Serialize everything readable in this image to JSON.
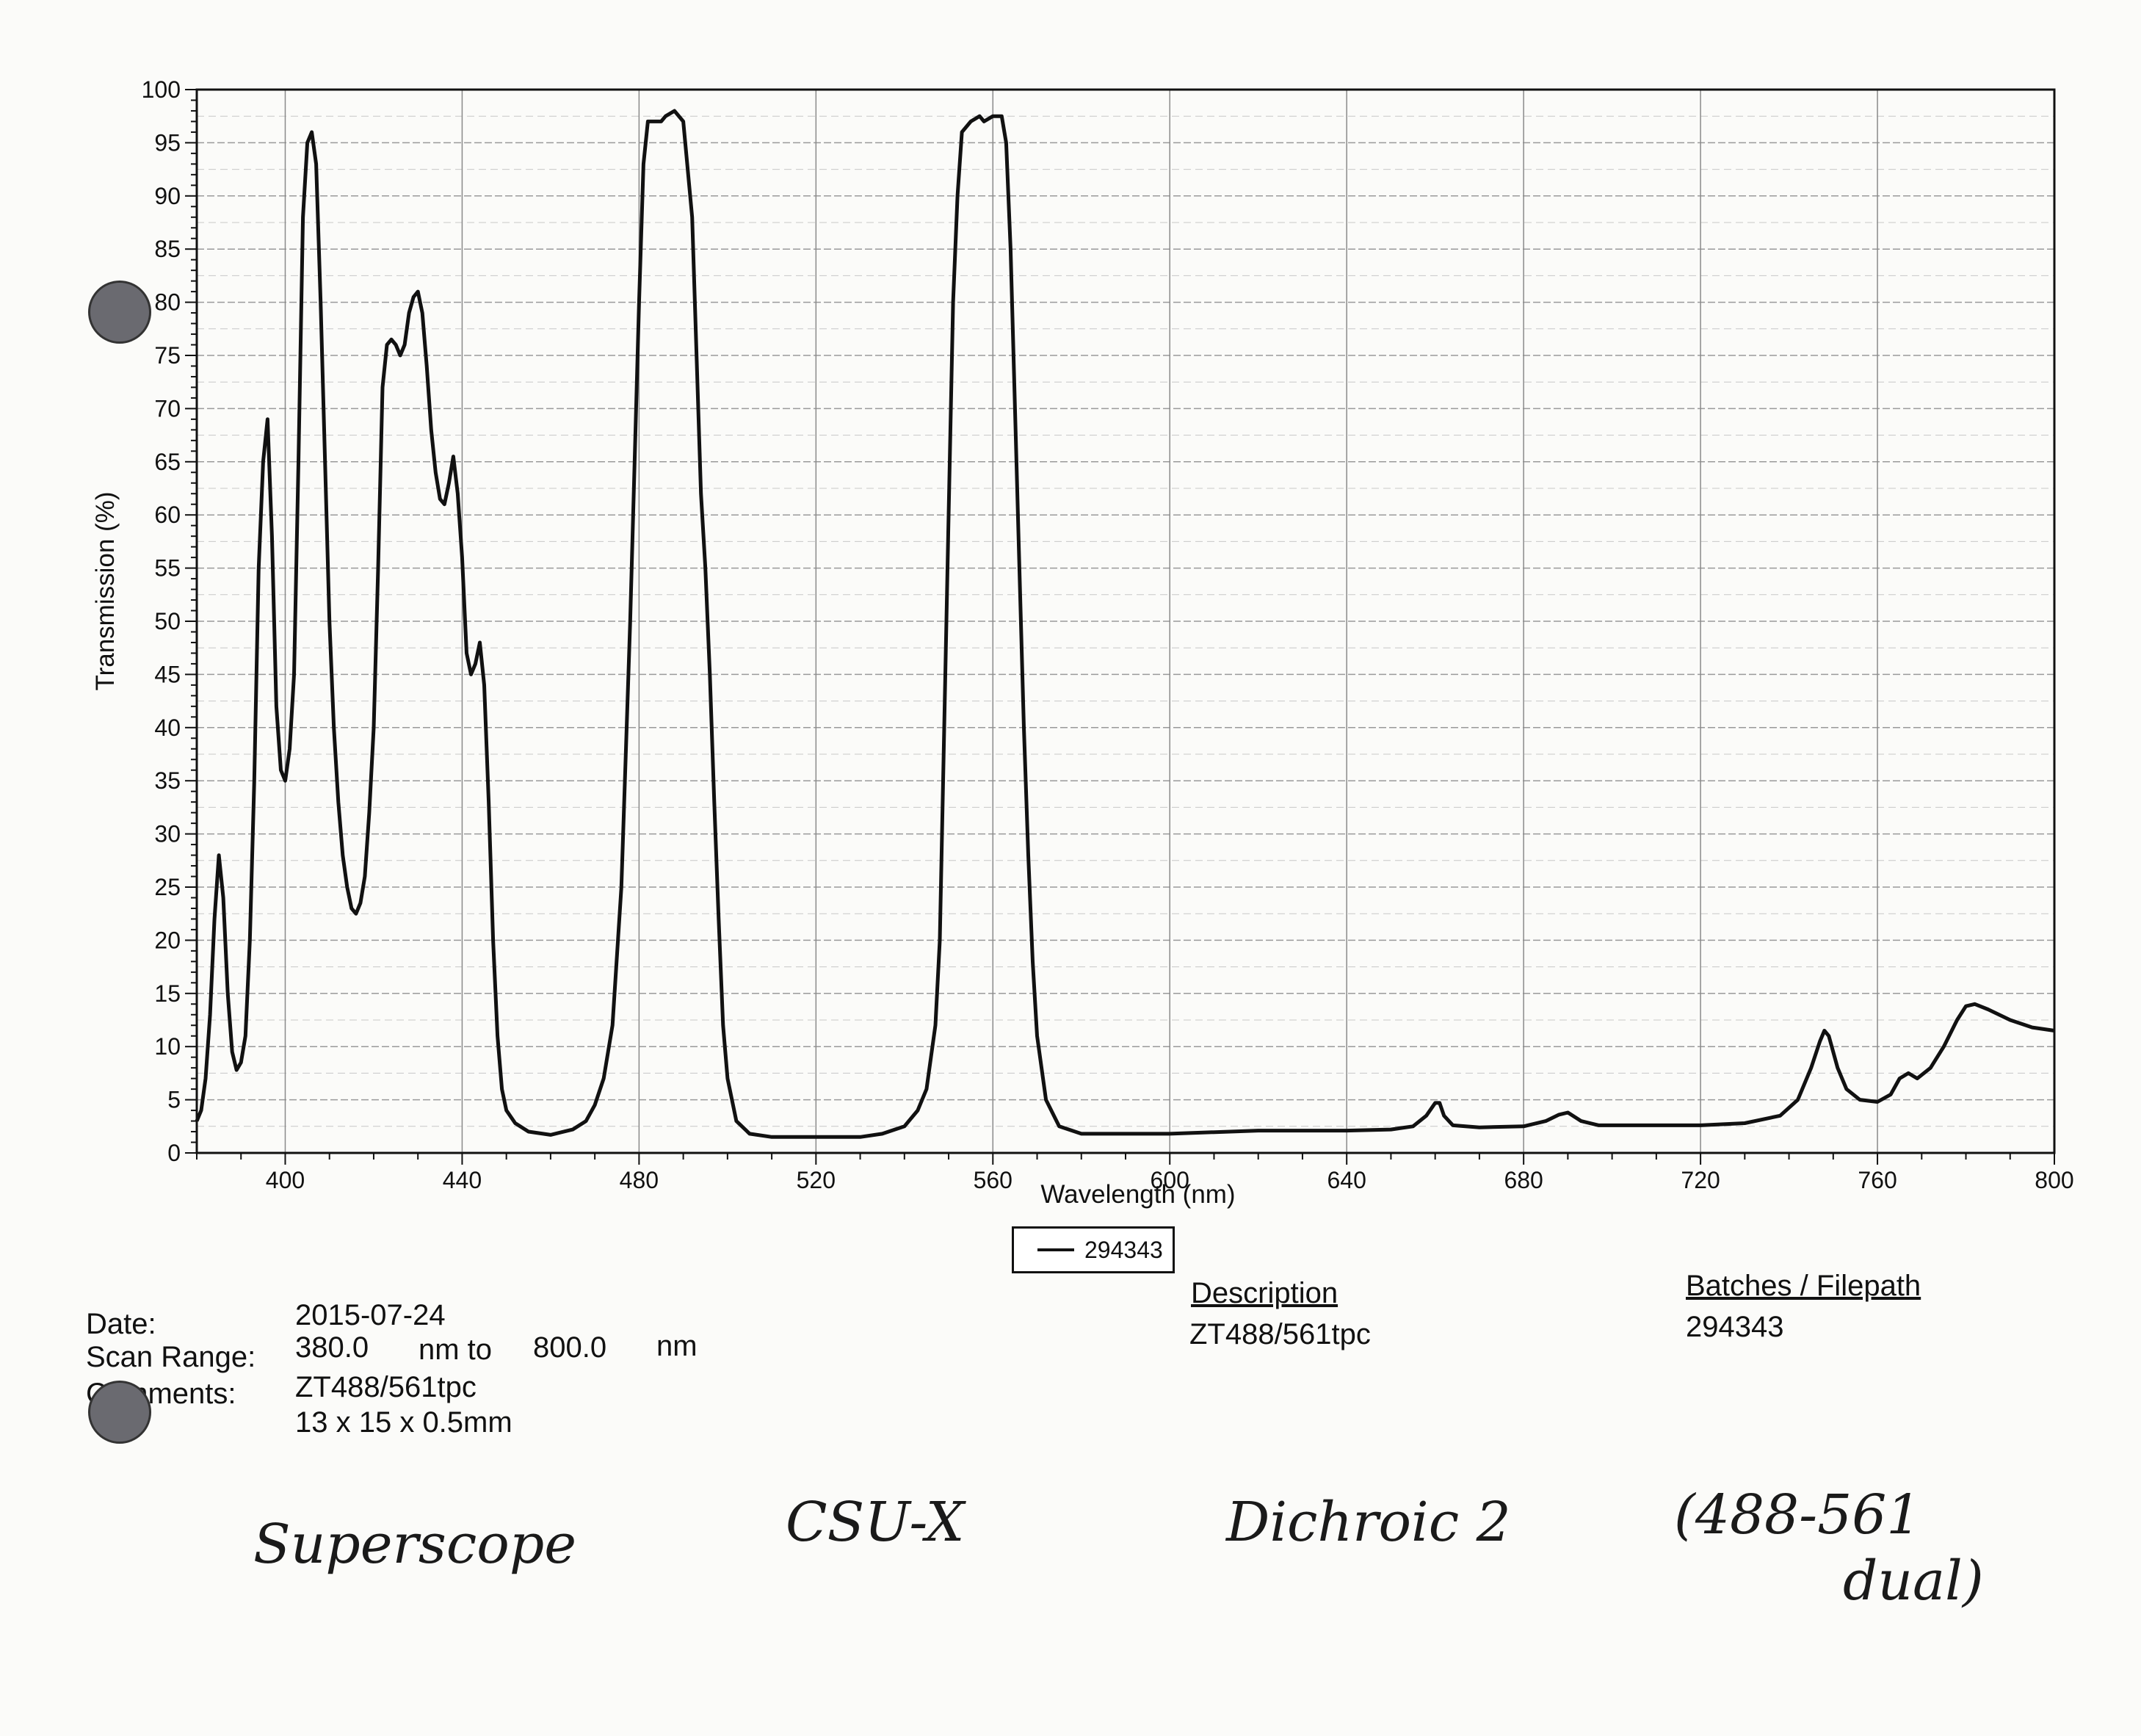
{
  "chart_data": {
    "type": "line",
    "xlabel": "Wavelength (nm)",
    "ylabel": "Transmission (%)",
    "xlim": [
      380,
      800
    ],
    "ylim": [
      0,
      100
    ],
    "xticks": [
      400,
      440,
      480,
      520,
      560,
      600,
      640,
      680,
      720,
      760,
      800
    ],
    "yticks": [
      0,
      5,
      10,
      15,
      20,
      25,
      30,
      35,
      40,
      45,
      50,
      55,
      60,
      65,
      70,
      75,
      80,
      85,
      90,
      95,
      100
    ],
    "grid": true,
    "legend": "bottom-center",
    "series": [
      {
        "name": "294343",
        "color": "#111111",
        "points": [
          [
            380,
            3
          ],
          [
            381,
            4
          ],
          [
            382,
            7
          ],
          [
            383,
            13
          ],
          [
            384,
            22
          ],
          [
            385,
            28
          ],
          [
            386,
            24
          ],
          [
            387,
            15
          ],
          [
            388,
            9.5
          ],
          [
            389,
            7.8
          ],
          [
            390,
            8.5
          ],
          [
            391,
            11
          ],
          [
            392,
            20
          ],
          [
            393,
            35
          ],
          [
            394,
            55
          ],
          [
            395,
            65
          ],
          [
            396,
            69
          ],
          [
            397,
            58
          ],
          [
            398,
            42
          ],
          [
            399,
            36
          ],
          [
            400,
            35
          ],
          [
            401,
            38
          ],
          [
            402,
            45
          ],
          [
            403,
            65
          ],
          [
            404,
            88
          ],
          [
            405,
            95
          ],
          [
            406,
            96
          ],
          [
            407,
            93
          ],
          [
            408,
            80
          ],
          [
            409,
            65
          ],
          [
            410,
            50
          ],
          [
            411,
            40
          ],
          [
            412,
            33
          ],
          [
            413,
            28
          ],
          [
            414,
            25
          ],
          [
            415,
            23
          ],
          [
            416,
            22.5
          ],
          [
            417,
            23.5
          ],
          [
            418,
            26
          ],
          [
            419,
            32
          ],
          [
            420,
            40
          ],
          [
            421,
            55
          ],
          [
            422,
            72
          ],
          [
            423,
            76
          ],
          [
            424,
            76.5
          ],
          [
            425,
            76
          ],
          [
            426,
            75
          ],
          [
            427,
            76
          ],
          [
            428,
            79
          ],
          [
            429,
            80.5
          ],
          [
            430,
            81
          ],
          [
            431,
            79
          ],
          [
            432,
            74
          ],
          [
            433,
            68
          ],
          [
            434,
            64
          ],
          [
            435,
            61.5
          ],
          [
            436,
            61
          ],
          [
            437,
            63
          ],
          [
            438,
            65.5
          ],
          [
            439,
            62
          ],
          [
            440,
            56
          ],
          [
            441,
            47
          ],
          [
            442,
            45
          ],
          [
            443,
            46
          ],
          [
            444,
            48
          ],
          [
            445,
            44
          ],
          [
            446,
            33
          ],
          [
            447,
            20
          ],
          [
            448,
            11
          ],
          [
            449,
            6
          ],
          [
            450,
            4
          ],
          [
            452,
            2.8
          ],
          [
            455,
            2
          ],
          [
            460,
            1.7
          ],
          [
            465,
            2.2
          ],
          [
            468,
            3
          ],
          [
            470,
            4.5
          ],
          [
            472,
            7
          ],
          [
            474,
            12
          ],
          [
            476,
            25
          ],
          [
            478,
            50
          ],
          [
            480,
            80
          ],
          [
            481,
            93
          ],
          [
            482,
            97
          ],
          [
            484,
            97
          ],
          [
            485,
            97
          ],
          [
            486,
            97.5
          ],
          [
            488,
            98
          ],
          [
            490,
            97
          ],
          [
            492,
            88
          ],
          [
            493,
            75
          ],
          [
            494,
            62
          ],
          [
            495,
            55
          ],
          [
            496,
            45
          ],
          [
            497,
            33
          ],
          [
            498,
            22
          ],
          [
            499,
            12
          ],
          [
            500,
            7
          ],
          [
            502,
            3
          ],
          [
            505,
            1.8
          ],
          [
            510,
            1.5
          ],
          [
            520,
            1.5
          ],
          [
            530,
            1.5
          ],
          [
            535,
            1.8
          ],
          [
            540,
            2.5
          ],
          [
            543,
            4
          ],
          [
            545,
            6
          ],
          [
            547,
            12
          ],
          [
            548,
            20
          ],
          [
            549,
            40
          ],
          [
            550,
            60
          ],
          [
            551,
            80
          ],
          [
            552,
            90
          ],
          [
            553,
            96
          ],
          [
            555,
            97
          ],
          [
            557,
            97.5
          ],
          [
            558,
            97
          ],
          [
            560,
            97.5
          ],
          [
            562,
            97.5
          ],
          [
            563,
            95
          ],
          [
            564,
            85
          ],
          [
            565,
            70
          ],
          [
            566,
            55
          ],
          [
            567,
            40
          ],
          [
            568,
            28
          ],
          [
            569,
            18
          ],
          [
            570,
            11
          ],
          [
            572,
            5
          ],
          [
            575,
            2.5
          ],
          [
            580,
            1.8
          ],
          [
            600,
            1.8
          ],
          [
            620,
            2.1
          ],
          [
            640,
            2.1
          ],
          [
            650,
            2.2
          ],
          [
            655,
            2.5
          ],
          [
            658,
            3.5
          ],
          [
            660,
            4.7
          ],
          [
            661,
            4.7
          ],
          [
            662,
            3.5
          ],
          [
            664,
            2.6
          ],
          [
            670,
            2.4
          ],
          [
            680,
            2.5
          ],
          [
            685,
            3
          ],
          [
            688,
            3.6
          ],
          [
            690,
            3.8
          ],
          [
            693,
            3
          ],
          [
            697,
            2.6
          ],
          [
            710,
            2.6
          ],
          [
            720,
            2.6
          ],
          [
            730,
            2.8
          ],
          [
            738,
            3.5
          ],
          [
            742,
            5
          ],
          [
            745,
            8
          ],
          [
            747,
            10.5
          ],
          [
            748,
            11.5
          ],
          [
            749,
            11
          ],
          [
            751,
            8
          ],
          [
            753,
            6
          ],
          [
            756,
            5
          ],
          [
            760,
            4.8
          ],
          [
            763,
            5.5
          ],
          [
            765,
            7
          ],
          [
            767,
            7.5
          ],
          [
            769,
            7
          ],
          [
            772,
            8
          ],
          [
            775,
            10
          ],
          [
            778,
            12.5
          ],
          [
            780,
            13.8
          ],
          [
            782,
            14
          ],
          [
            785,
            13.5
          ],
          [
            790,
            12.5
          ],
          [
            795,
            11.8
          ],
          [
            800,
            11.5
          ]
        ]
      }
    ]
  },
  "info": {
    "date_label": "Date:",
    "date_value": "2015-07-24",
    "scan_label": "Scan Range:",
    "scan_from": "380.0",
    "scan_mid": "nm to",
    "scan_to": "800.0",
    "scan_unit": "nm",
    "comments_label": "Comments:",
    "comments_line1": "ZT488/561tpc",
    "comments_line2": "13 x 15 x 0.5mm",
    "description_header": "Description",
    "description_value": "ZT488/561tpc",
    "batches_header": "Batches / Filepath",
    "batches_value": "294343"
  },
  "handwriting": {
    "superscope": "Superscope",
    "csu": "CSU-X",
    "dichroic": "Dichroic 2",
    "range": "(488-561",
    "dual": "dual)"
  }
}
